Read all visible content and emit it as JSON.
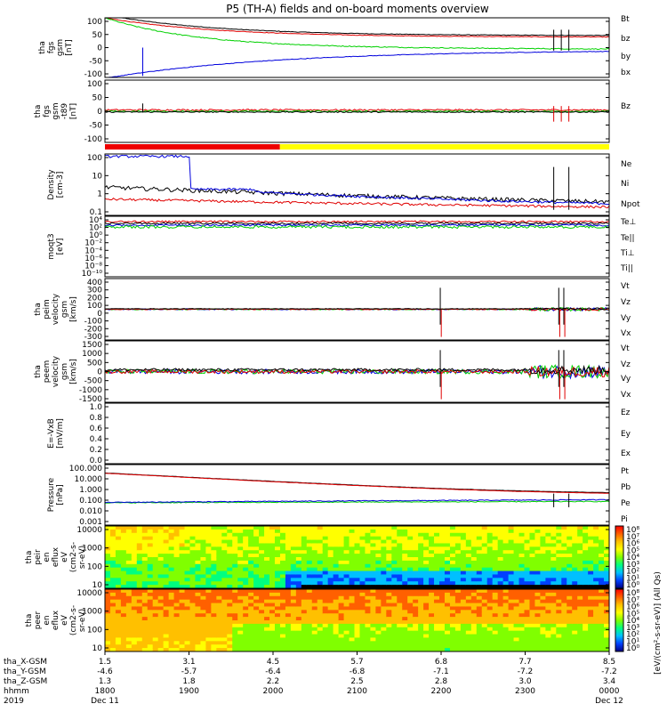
{
  "title": "P5 (TH-A) fields and on-board moments overview",
  "colors": {
    "black": "#000000",
    "red": "#e00000",
    "green": "#00d000",
    "blue": "#0000dd",
    "yellow": "#ffff00",
    "bar_red": "#ee0000"
  },
  "chart_data": [
    {
      "id": "fgs",
      "type": "line",
      "ylabel": [
        "tha",
        "fgs",
        "gsm",
        "[nT]"
      ],
      "ylim": [
        -100,
        100
      ],
      "yticks": [
        "100",
        "50",
        "0",
        "-50",
        "-100"
      ],
      "series": [
        {
          "name": "Bt",
          "color": "#000000"
        },
        {
          "name": "bz",
          "color": "#e00000"
        },
        {
          "name": "by",
          "color": "#00d000"
        },
        {
          "name": "bx",
          "color": "#0000dd"
        }
      ]
    },
    {
      "id": "fgs_dtrend",
      "type": "line",
      "ylabel": [
        "tha",
        "fgs",
        "gsm",
        "-t89",
        "[nT]"
      ],
      "ylim": [
        -120,
        120
      ],
      "yticks": [
        "100",
        "50",
        "0",
        "-50",
        "-100"
      ],
      "series": [
        {
          "name": "Bz",
          "color": "#000000"
        }
      ]
    },
    {
      "id": "density",
      "type": "line",
      "ylabel": [
        "Density",
        "[cm-3]"
      ],
      "scale": "log",
      "ylim": [
        0.1,
        200
      ],
      "yticks": [
        "100",
        "10",
        "1",
        "0.1"
      ],
      "series": [
        {
          "name": "Ne",
          "color": "#e00000"
        },
        {
          "name": "Ni",
          "color": "#000000"
        },
        {
          "name": "Npot",
          "color": "#0000dd"
        }
      ]
    },
    {
      "id": "temp",
      "type": "line",
      "ylabel": [
        "moqt3",
        "[eV]"
      ],
      "scale": "log",
      "yticks": [
        "10⁴",
        "10²",
        "10⁰",
        "10⁻²",
        "10⁻⁴",
        "10⁻⁶",
        "10⁻⁸",
        "10⁻¹⁰"
      ],
      "series": [
        {
          "name": "Te⊥",
          "color": "#e00000"
        },
        {
          "name": "Te||",
          "color": "#000000"
        },
        {
          "name": "Ti⊥",
          "color": "#e00000"
        },
        {
          "name": "Ti||",
          "color": "#00d000"
        }
      ]
    },
    {
      "id": "vi",
      "type": "line",
      "ylabel": [
        "tha",
        "peim",
        "velocity",
        "gsm",
        "[km/s]"
      ],
      "ylim": [
        -400,
        400
      ],
      "yticks": [
        "400",
        "300",
        "200",
        "100",
        "0",
        "-100",
        "-200",
        "-300"
      ],
      "series": [
        {
          "name": "Vt",
          "color": "#000000"
        },
        {
          "name": "Vz",
          "color": "#e00000"
        },
        {
          "name": "Vy",
          "color": "#00d000"
        },
        {
          "name": "Vx",
          "color": "#0000dd"
        }
      ]
    },
    {
      "id": "ve",
      "type": "line",
      "ylabel": [
        "tha",
        "peem",
        "velocity",
        "gsm",
        "[km/s]"
      ],
      "ylim": [
        -1500,
        1500
      ],
      "yticks": [
        "1500",
        "1000",
        "500",
        "0",
        "-500",
        "-1000",
        "-1500"
      ],
      "series": [
        {
          "name": "Vt",
          "color": "#000000"
        },
        {
          "name": "Vz",
          "color": "#e00000"
        },
        {
          "name": "Vy",
          "color": "#00d000"
        },
        {
          "name": "Vx",
          "color": "#0000dd"
        }
      ]
    },
    {
      "id": "efield",
      "type": "line",
      "ylabel": [
        "E=-VxB",
        "[mV/m]"
      ],
      "ylim": [
        0,
        1
      ],
      "yticks": [
        "1.0",
        "0.8",
        "0.6",
        "0.4",
        "0.2",
        "0.0"
      ],
      "series": [
        {
          "name": "Ez",
          "color": "#e00000"
        },
        {
          "name": "Ey",
          "color": "#00d000"
        },
        {
          "name": "Ex",
          "color": "#0000dd"
        }
      ]
    },
    {
      "id": "pressure",
      "type": "line",
      "ylabel": [
        "Pressure",
        "[nPa]"
      ],
      "scale": "log",
      "yticks": [
        "100.000",
        "10.000",
        "1.000",
        "0.100",
        "0.010",
        "0.001"
      ],
      "series": [
        {
          "name": "Pt",
          "color": "#000000"
        },
        {
          "name": "Pb",
          "color": "#e00000"
        },
        {
          "name": "Pe",
          "color": "#00d000"
        },
        {
          "name": "Pi",
          "color": "#0000dd"
        }
      ]
    },
    {
      "id": "ion_spec",
      "type": "heatmap",
      "ylabel": [
        "tha",
        "peir",
        "en",
        "eflux",
        "eV",
        "(cm2-s-",
        "sr-eV)"
      ],
      "yticks": [
        "10000",
        "1000",
        "100",
        "10"
      ]
    },
    {
      "id": "elec_spec",
      "type": "heatmap",
      "ylabel": [
        "tha",
        "peer",
        "en",
        "eflux",
        "eV",
        "(cm2-s-",
        "sr-eV)"
      ],
      "yticks": [
        "10000",
        "1000",
        "100",
        "10"
      ]
    }
  ],
  "colorbar": {
    "label": "[eV/(cm²-s-sr-eV)] (All Qs)",
    "ticks": [
      "10⁸",
      "10⁷",
      "10⁶",
      "10⁵",
      "10⁴",
      "10³",
      "10²",
      "10¹",
      "10⁰"
    ]
  },
  "x_axis": {
    "row_labels": [
      "tha_X-GSM",
      "tha_Y-GSM",
      "tha_Z-GSM",
      "hhmm",
      "2019"
    ],
    "ticks": [
      {
        "x": "1.5",
        "y": "-4.6",
        "z": "1.3",
        "t": "1800",
        "d": "Dec 11"
      },
      {
        "x": "3.1",
        "y": "-5.7",
        "z": "1.8",
        "t": "1900",
        "d": ""
      },
      {
        "x": "4.5",
        "y": "-6.4",
        "z": "2.2",
        "t": "2000",
        "d": ""
      },
      {
        "x": "5.7",
        "y": "-6.8",
        "z": "2.5",
        "t": "2100",
        "d": ""
      },
      {
        "x": "6.8",
        "y": "-7.1",
        "z": "2.8",
        "t": "2200",
        "d": ""
      },
      {
        "x": "7.7",
        "y": "-7.2",
        "z": "3.0",
        "t": "2300",
        "d": ""
      },
      {
        "x": "8.5",
        "y": "-7.2",
        "z": "3.4",
        "t": "0000",
        "d": "Dec 12"
      }
    ]
  },
  "mode_bar": {
    "red_fraction": 0.347
  }
}
